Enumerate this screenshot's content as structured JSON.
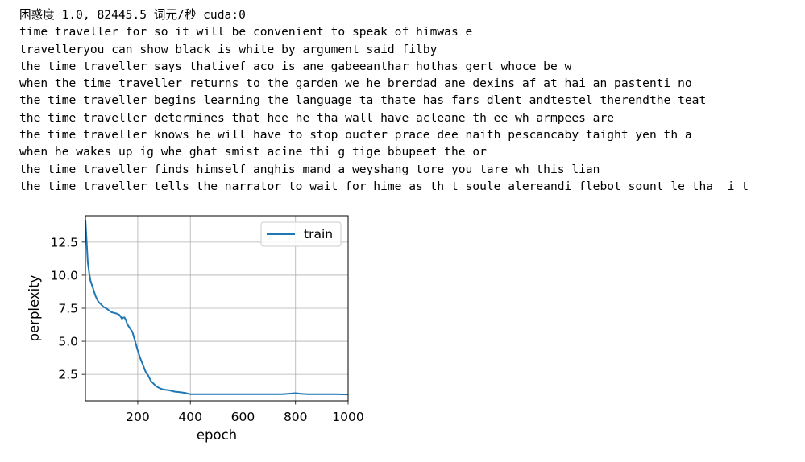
{
  "output": {
    "header": "困惑度 1.0, 82445.5 词元/秒 cuda:0",
    "lines": [
      "time traveller for so it will be convenient to speak of himwas e",
      "travelleryou can show black is white by argument said filby",
      "the time traveller says thativef aco is ane gabeeanthar hothas gert whoce be w",
      "when the time traveller returns to the garden we he brerdad ane dexins af at hai an pastenti no",
      "the time traveller begins learning the language ta thate has fars dlent andtestel therendthe teat",
      "the time traveller determines that hee he tha wall have acleane th ee wh armpees are",
      "the time traveller knows he will have to stop oucter prace dee naith pescancaby taight yen th a",
      "when he wakes up ig whe ghat smist acine thi g tige bbupeet the or",
      "the time traveller finds himself anghis mand a weyshang tore you tare wh this lian",
      "the time traveller tells the narrator to wait for hime as th t soule alereandi flebot sount le tha  i t"
    ]
  },
  "chart_data": {
    "type": "line",
    "xlabel": "epoch",
    "ylabel": "perplexity",
    "xlim": [
      1,
      1000
    ],
    "ylim": [
      0.5,
      14.5
    ],
    "xticks": [
      200,
      400,
      600,
      800,
      1000
    ],
    "yticks": [
      2.5,
      5.0,
      7.5,
      10.0,
      12.5
    ],
    "xtick_labels": [
      "200",
      "400",
      "600",
      "800",
      "1000"
    ],
    "ytick_labels": [
      "2.5",
      "5.0",
      "7.5",
      "10.0",
      "12.5"
    ],
    "grid": true,
    "legend": "top-right",
    "series": [
      {
        "name": "train",
        "color": "#1f77b4",
        "x": [
          1,
          5,
          10,
          15,
          20,
          30,
          40,
          50,
          60,
          70,
          80,
          90,
          100,
          110,
          120,
          130,
          140,
          145,
          150,
          155,
          160,
          170,
          180,
          190,
          200,
          210,
          220,
          230,
          240,
          250,
          260,
          270,
          280,
          290,
          300,
          320,
          340,
          360,
          380,
          400,
          420,
          450,
          500,
          550,
          600,
          650,
          700,
          750,
          780,
          800,
          820,
          850,
          900,
          950,
          1000
        ],
        "values": [
          14.2,
          12.8,
          11.0,
          10.2,
          9.6,
          9.0,
          8.4,
          8.0,
          7.8,
          7.6,
          7.5,
          7.35,
          7.2,
          7.15,
          7.1,
          7.0,
          6.7,
          6.8,
          6.8,
          6.6,
          6.3,
          6.0,
          5.7,
          5.0,
          4.3,
          3.7,
          3.2,
          2.7,
          2.4,
          2.0,
          1.8,
          1.6,
          1.5,
          1.4,
          1.35,
          1.3,
          1.2,
          1.15,
          1.1,
          1.0,
          1.0,
          1.0,
          1.0,
          1.0,
          1.0,
          1.0,
          1.0,
          1.0,
          1.05,
          1.08,
          1.03,
          1.0,
          1.0,
          1.0,
          0.98
        ]
      }
    ]
  }
}
